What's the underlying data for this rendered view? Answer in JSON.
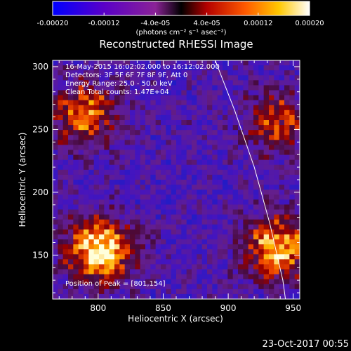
{
  "chart_data": {
    "type": "heatmap",
    "title": "Reconstructed RHESSI Image",
    "xlabel": "Heliocentric X (arcsec)",
    "ylabel": "Heliocentric Y (arcsec)",
    "xlim": [
      765,
      955
    ],
    "ylim": [
      115,
      305
    ],
    "x_ticks": [
      800,
      850,
      900,
      950
    ],
    "y_ticks": [
      150,
      200,
      250,
      300
    ],
    "colorbar": {
      "range": [
        -0.0002,
        0.0002
      ],
      "ticks": [
        -0.0002,
        -0.00012,
        -4e-05,
        4e-05,
        0.00012,
        0.0002
      ],
      "tick_labels": [
        "-0.00020",
        "-0.00012",
        "-4.0e-05",
        "4.0e-05",
        "0.00012",
        "0.00020"
      ],
      "unit_label": "(photons cm⁻² s⁻¹ asec⁻²)"
    },
    "annotations": [
      "16-May-2015 16:02:02.000 to 16:12:02.000",
      "Detectors: 3F 5F 6F 7F 8F 9F, Att 0",
      "Energy Range: 25.0 - 50.0 keV",
      "Clean     Total counts: 1.47E+04"
    ],
    "peak_label": "Position of Peak = [801,154]",
    "peak": [
      801,
      154
    ],
    "sources": [
      {
        "x": 801,
        "y": 154,
        "relative_intensity": 1.0
      },
      {
        "x": 938,
        "y": 155,
        "relative_intensity": 0.85
      },
      {
        "x": 790,
        "y": 262,
        "relative_intensity": 0.7
      },
      {
        "x": 938,
        "y": 255,
        "relative_intensity": 0.55
      }
    ],
    "limb_curve": [
      [
        890,
        305
      ],
      [
        905,
        265
      ],
      [
        920,
        220
      ],
      [
        932,
        175
      ],
      [
        942,
        130
      ],
      [
        944,
        115
      ]
    ],
    "colors": {
      "background": "#000000",
      "axes": "#ffffff",
      "limb": "#ffffff"
    },
    "footer_date": "23-Oct-2017 00:55"
  }
}
